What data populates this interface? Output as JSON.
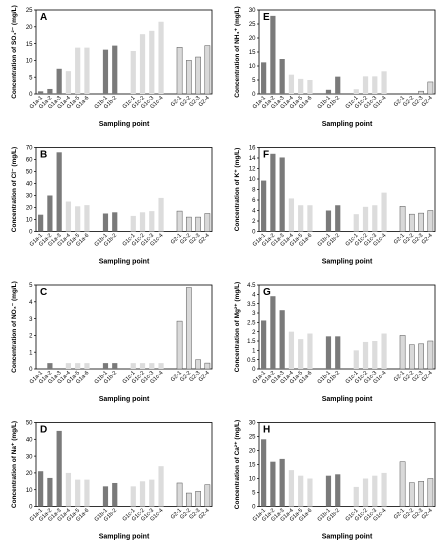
{
  "chart_data": [
    {
      "panel": "A",
      "type": "bar",
      "ylabel": "Concentration of SO₄²⁻ (mg/L)",
      "xlabel": "Sampling point",
      "ylim": [
        0,
        25
      ],
      "yticks": [
        0,
        5,
        10,
        15,
        20,
        25
      ],
      "categories": [
        "G1a-1",
        "G1a-2",
        "G1a-3",
        "G1a-4",
        "G1a-5",
        "G1a-6",
        "G1b-1",
        "G1b-2",
        "G1c-1",
        "G1c-2",
        "G1c-3",
        "G1c-4",
        "G2-1",
        "G2-2",
        "G2-3",
        "G2-4"
      ],
      "values": [
        0.8,
        1.5,
        7.5,
        6.8,
        13.8,
        13.8,
        13.2,
        14.4,
        12.8,
        17.8,
        18.8,
        21.5,
        13.9,
        10.0,
        11.0,
        14.4
      ]
    },
    {
      "panel": "E",
      "type": "bar",
      "ylabel": "Concentration of NH₄⁺ (mg/L)",
      "xlabel": "Sampling point",
      "ylim": [
        0,
        30
      ],
      "yticks": [
        0,
        5,
        10,
        15,
        20,
        25,
        30
      ],
      "categories": [
        "G1a-1",
        "G1a-2",
        "G1a-3",
        "G1a-4",
        "G1a-5",
        "G1a-6",
        "G1b-1",
        "G1b-2",
        "G1c-1",
        "G1c-2",
        "G1c-3",
        "G1c-4",
        "G2-1",
        "G2-2",
        "G2-3",
        "G2-4"
      ],
      "values": [
        11.3,
        27.9,
        12.5,
        6.9,
        5.4,
        5.0,
        1.5,
        6.2,
        1.7,
        6.3,
        6.3,
        8.1,
        0,
        0,
        1.0,
        4.3
      ]
    },
    {
      "panel": "B",
      "type": "bar",
      "ylabel": "Concentration of Cl⁻ (mg/L)",
      "xlabel": "Sampling point",
      "ylim": [
        0,
        70
      ],
      "yticks": [
        0,
        10,
        20,
        30,
        40,
        50,
        60,
        70
      ],
      "categories": [
        "G1a-1",
        "G1a-2",
        "G1a-3",
        "G1a-4",
        "G1a-5",
        "G1a-6",
        "G1b-1",
        "G1b-2",
        "G1c-1",
        "G1c-2",
        "G1c-3",
        "G1c-4",
        "G2-1",
        "G2-2",
        "G2-3",
        "G2-4"
      ],
      "values": [
        14,
        30,
        66,
        25,
        21,
        22,
        15,
        16,
        13,
        16,
        17,
        28,
        17,
        12,
        12,
        15
      ]
    },
    {
      "panel": "F",
      "type": "bar",
      "ylabel": "Concentration of K⁺ (mg/L)",
      "xlabel": "Sampling point",
      "ylim": [
        0,
        16
      ],
      "yticks": [
        0,
        2,
        4,
        6,
        8,
        10,
        12,
        14,
        16
      ],
      "categories": [
        "G1a-1",
        "G1a-2",
        "G1a-3",
        "G1a-4",
        "G1a-5",
        "G1a-6",
        "G1b-1",
        "G1b-2",
        "G1c-1",
        "G1c-2",
        "G1c-3",
        "G1c-4",
        "G2-1",
        "G2-2",
        "G2-3",
        "G2-4"
      ],
      "values": [
        9.7,
        14.8,
        14.1,
        6.3,
        5.0,
        5.0,
        4.0,
        5.0,
        3.3,
        4.7,
        5.0,
        7.4,
        4.8,
        3.3,
        3.5,
        4.0
      ]
    },
    {
      "panel": "C",
      "type": "bar",
      "ylabel": "Concentration of NO₃⁻ (mg/L)",
      "xlabel": "Sampling point",
      "ylim": [
        0,
        5
      ],
      "yticks": [
        0,
        1,
        2,
        3,
        4,
        5
      ],
      "categories": [
        "G1a-1",
        "G1a-2",
        "G1a-3",
        "G1a-4",
        "G1a-5",
        "G1a-6",
        "G1b-1",
        "G1b-2",
        "G1c-1",
        "G1c-2",
        "G1c-3",
        "G1c-4",
        "G2-1",
        "G2-2",
        "G2-3",
        "G2-4"
      ],
      "values": [
        0,
        0.35,
        0,
        0.35,
        0.35,
        0.35,
        0.35,
        0.35,
        0.35,
        0.35,
        0.35,
        0.35,
        2.85,
        4.85,
        0.55,
        0.35
      ]
    },
    {
      "panel": "G",
      "type": "bar",
      "ylabel": "Concentration of Mg²⁺ (mg/L)",
      "xlabel": "Sampling point",
      "ylim": [
        0,
        4.5
      ],
      "yticks": [
        0,
        0.5,
        1,
        1.5,
        2,
        2.5,
        3,
        3.5,
        4,
        4.5
      ],
      "categories": [
        "G1a-1",
        "G1a-2",
        "G1a-3",
        "G1a-4",
        "G1a-5",
        "G1a-6",
        "G1b-1",
        "G1b-2",
        "G1c-1",
        "G1c-2",
        "G1c-3",
        "G1c-4",
        "G2-1",
        "G2-2",
        "G2-3",
        "G2-4"
      ],
      "values": [
        2.6,
        3.9,
        3.15,
        2.0,
        1.6,
        1.9,
        1.75,
        1.75,
        1.0,
        1.45,
        1.5,
        1.9,
        1.8,
        1.3,
        1.35,
        1.5
      ]
    },
    {
      "panel": "D",
      "type": "bar",
      "ylabel": "Concentration of Na⁺ (mg/L)",
      "xlabel": "Sampling point",
      "ylim": [
        0,
        50
      ],
      "yticks": [
        0,
        10,
        20,
        30,
        40,
        50
      ],
      "categories": [
        "G1a-1",
        "G1a-2",
        "G1a-3",
        "G1a-4",
        "G1a-5",
        "G1a-6",
        "G1b-1",
        "G1b-2",
        "G1c-1",
        "G1c-2",
        "G1c-3",
        "G1c-4",
        "G2-1",
        "G2-2",
        "G2-3",
        "G2-4"
      ],
      "values": [
        21,
        17,
        45,
        20,
        16,
        16,
        12,
        14,
        12,
        15,
        16,
        24,
        14,
        8,
        9,
        13
      ]
    },
    {
      "panel": "H",
      "type": "bar",
      "ylabel": "Concentration of Ca²⁺ (mg/L)",
      "xlabel": "Sampling point",
      "ylim": [
        0,
        30
      ],
      "yticks": [
        0,
        5,
        10,
        15,
        20,
        25,
        30
      ],
      "categories": [
        "G1a-1",
        "G1a-2",
        "G1a-3",
        "G1a-4",
        "G1a-5",
        "G1a-6",
        "G1b-1",
        "G1b-2",
        "G1c-1",
        "G1c-2",
        "G1c-3",
        "G1c-4",
        "G2-1",
        "G2-2",
        "G2-3",
        "G2-4"
      ],
      "values": [
        24,
        16,
        17,
        13,
        11,
        10,
        11,
        11.5,
        7,
        10,
        11,
        12,
        16,
        8.5,
        9,
        10
      ]
    }
  ],
  "colors": {
    "dark": "#7a7a7a",
    "medium": "#bdbdbd",
    "light": "#dcdcdc",
    "outlined": "#d9d9d9",
    "axis": "#000000"
  }
}
